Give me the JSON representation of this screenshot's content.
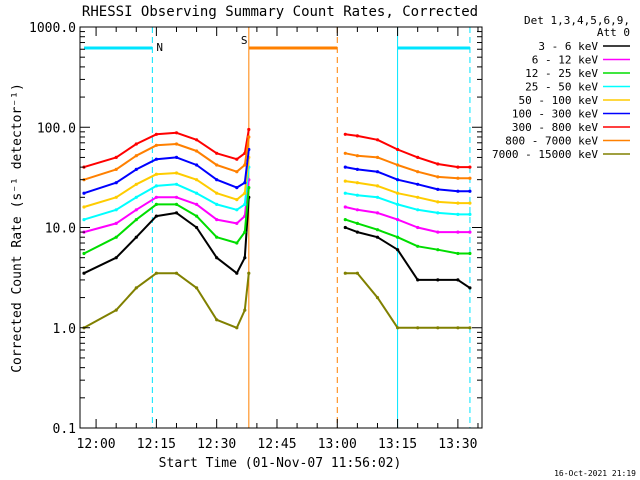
{
  "chart_data": {
    "type": "line",
    "title": "RHESSI Observing Summary Count Rates, Corrected",
    "xlabel": "Start Time (01-Nov-07 11:56:02)",
    "ylabel": "Corrected Count Rate (s⁻¹ detector⁻¹)",
    "y_scale": "log",
    "ylim": [
      0.1,
      1000
    ],
    "y_ticks": [
      "1000.0",
      "100.0",
      "10.0",
      "1.0",
      "0.1"
    ],
    "y_tick_values": [
      1000,
      100,
      10,
      1,
      0.1
    ],
    "x_range": [
      "11:56",
      "13:36"
    ],
    "x_ticks": [
      "12:00",
      "12:15",
      "12:30",
      "12:45",
      "13:00",
      "13:15",
      "13:30"
    ],
    "x_tick_values": [
      "12:00",
      "12:15",
      "12:30",
      "12:45",
      "13:00",
      "13:15",
      "13:30"
    ],
    "legend_header": [
      "Det 1,3,4,5,6,9,",
      "Att 0"
    ],
    "legend_position": "right",
    "timestamp": "16-Oct-2021 21:19",
    "flags": [
      {
        "label": "N",
        "type": "night",
        "color": "#00e5ff",
        "start": "11:57",
        "end": "12:14"
      },
      {
        "label": "S",
        "type": "SAA",
        "color": "#ff8000",
        "start": "12:38",
        "end": "13:00"
      },
      {
        "label": "",
        "type": "night",
        "color": "#00e5ff",
        "start": "13:15",
        "end": "13:33"
      }
    ],
    "boundaries": [
      {
        "time": "11:56",
        "color": "#00e5ff",
        "style": "solid"
      },
      {
        "time": "12:14",
        "color": "#00e5ff",
        "style": "dashed"
      },
      {
        "time": "12:38",
        "color": "#ff8000",
        "style": "solid"
      },
      {
        "time": "13:00",
        "color": "#ff8000",
        "style": "dashed"
      },
      {
        "time": "13:15",
        "color": "#00e5ff",
        "style": "solid"
      },
      {
        "time": "13:33",
        "color": "#00e5ff",
        "style": "dashed"
      }
    ],
    "x": [
      "11:57",
      "12:05",
      "12:10",
      "12:15",
      "12:20",
      "12:25",
      "12:30",
      "12:35",
      "12:37",
      "12:38",
      "13:02",
      "13:05",
      "13:10",
      "13:15",
      "13:20",
      "13:25",
      "13:30",
      "13:33"
    ],
    "series": [
      {
        "name": "3 - 6 keV",
        "color": "#000000",
        "values": [
          3.5,
          5,
          8,
          13,
          14,
          10,
          5,
          3.5,
          5,
          20,
          10,
          9,
          8,
          6,
          3,
          3,
          3,
          2.5
        ]
      },
      {
        "name": "6 - 12 keV",
        "color": "#ff00ff",
        "values": [
          9,
          11,
          15,
          20,
          20,
          17,
          12,
          11,
          13,
          30,
          16,
          15,
          14,
          12,
          10,
          9,
          9,
          9
        ]
      },
      {
        "name": "12 - 25 keV",
        "color": "#00dd00",
        "values": [
          5.5,
          8,
          12,
          17,
          17,
          13,
          8,
          7,
          9,
          25,
          12,
          11,
          9.5,
          8,
          6.5,
          6,
          5.5,
          5.5
        ]
      },
      {
        "name": "25 - 50 keV",
        "color": "#00ffff",
        "values": [
          12,
          15,
          20,
          26,
          27,
          22,
          17,
          15,
          17,
          40,
          22,
          21,
          20,
          17,
          15,
          14,
          13.5,
          13.5
        ]
      },
      {
        "name": "50 - 100 keV",
        "color": "#ffcc00",
        "values": [
          16,
          20,
          27,
          34,
          35,
          30,
          22,
          19,
          22,
          50,
          29,
          28,
          26,
          22,
          20,
          18,
          17.5,
          17.5
        ]
      },
      {
        "name": "100 - 300 keV",
        "color": "#0000ff",
        "values": [
          22,
          28,
          38,
          48,
          50,
          42,
          30,
          25,
          28,
          60,
          40,
          38,
          36,
          30,
          27,
          24,
          23,
          23
        ]
      },
      {
        "name": "300 - 800 keV",
        "color": "#ff0000",
        "values": [
          40,
          50,
          68,
          85,
          88,
          75,
          55,
          48,
          55,
          95,
          85,
          82,
          75,
          60,
          50,
          43,
          40,
          40
        ]
      },
      {
        "name": "800 - 7000 keV",
        "color": "#ff8000",
        "values": [
          30,
          38,
          52,
          66,
          68,
          58,
          42,
          36,
          42,
          80,
          55,
          52,
          50,
          42,
          36,
          32,
          31,
          31
        ]
      },
      {
        "name": "7000 - 15000 keV",
        "color": "#808000",
        "values": [
          1,
          1.5,
          2.5,
          3.5,
          3.5,
          2.5,
          1.2,
          1,
          1.5,
          3.5,
          3.5,
          3.5,
          2,
          1,
          1,
          1,
          1,
          1
        ]
      }
    ]
  }
}
